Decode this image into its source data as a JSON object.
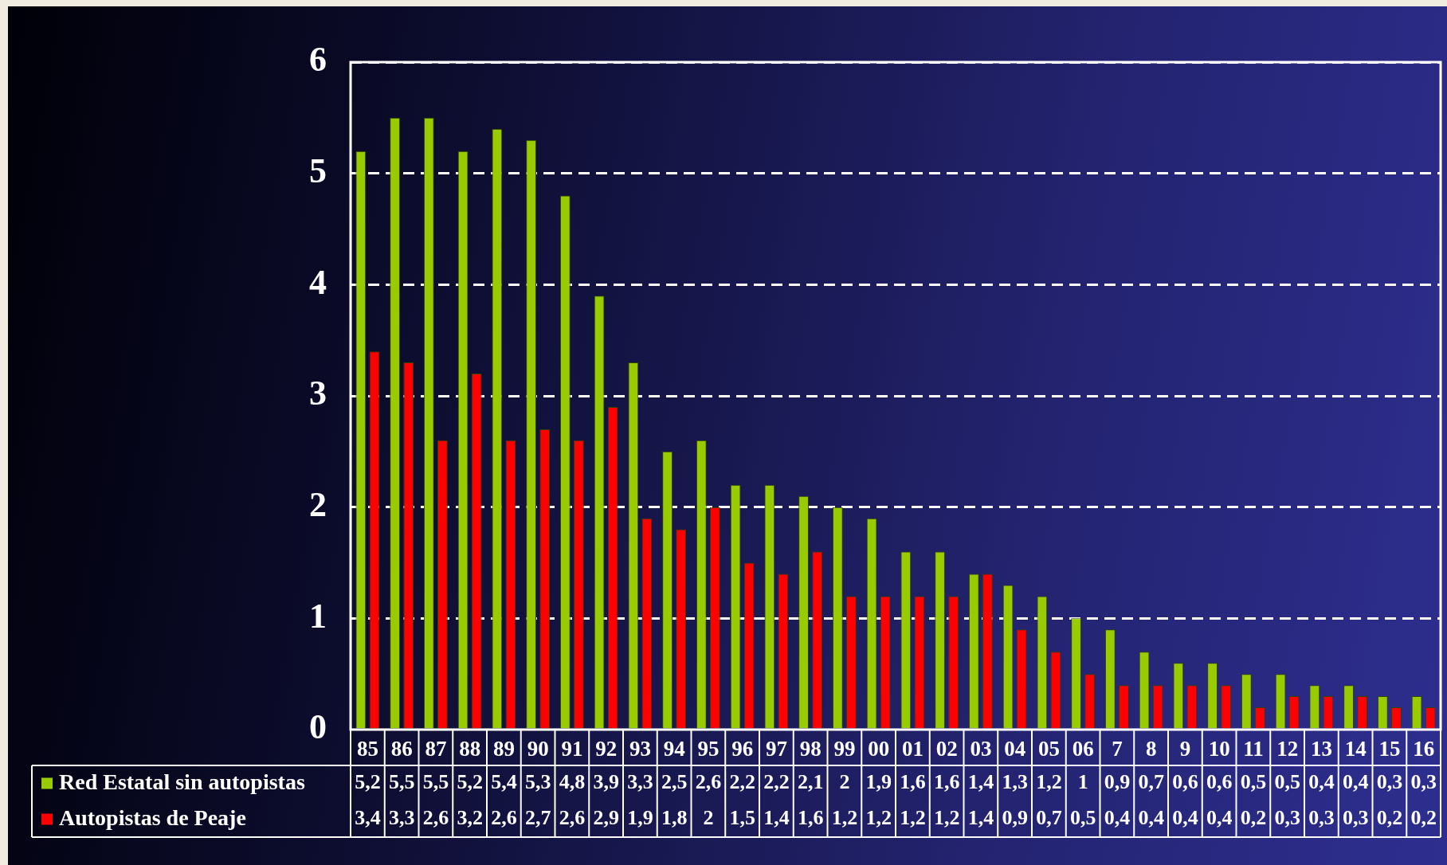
{
  "chart_data": {
    "type": "bar",
    "categories": [
      "85",
      "86",
      "87",
      "88",
      "89",
      "90",
      "91",
      "92",
      "93",
      "94",
      "95",
      "96",
      "97",
      "98",
      "99",
      "00",
      "01",
      "02",
      "03",
      "04",
      "05",
      "06",
      "7",
      "8",
      "9",
      "10",
      "11",
      "12",
      "13",
      "14",
      "15",
      "16"
    ],
    "series": [
      {
        "name": "Red Estatal sin autopistas",
        "color": "#99cc00",
        "values": [
          5.2,
          5.5,
          5.5,
          5.2,
          5.4,
          5.3,
          4.8,
          3.9,
          3.3,
          2.5,
          2.6,
          2.2,
          2.2,
          2.1,
          2,
          1.9,
          1.6,
          1.6,
          1.4,
          1.3,
          1.2,
          1,
          0.9,
          0.7,
          0.6,
          0.6,
          0.5,
          0.5,
          0.4,
          0.4,
          0.3,
          0.3
        ],
        "value_labels": [
          "5,2",
          "5,5",
          "5,5",
          "5,2",
          "5,4",
          "5,3",
          "4,8",
          "3,9",
          "3,3",
          "2,5",
          "2,6",
          "2,2",
          "2,2",
          "2,1",
          "2",
          "1,9",
          "1,6",
          "1,6",
          "1,4",
          "1,3",
          "1,2",
          "1",
          "0,9",
          "0,7",
          "0,6",
          "0,6",
          "0,5",
          "0,5",
          "0,4",
          "0,4",
          "0,3",
          "0,3"
        ]
      },
      {
        "name": "Autopistas de Peaje",
        "color": "#ff0000",
        "values": [
          3.4,
          3.3,
          2.6,
          3.2,
          2.6,
          2.7,
          2.6,
          2.9,
          1.9,
          1.8,
          2,
          1.5,
          1.4,
          1.6,
          1.2,
          1.2,
          1.2,
          1.2,
          1.4,
          0.9,
          0.7,
          0.5,
          0.4,
          0.4,
          0.4,
          0.4,
          0.2,
          0.3,
          0.3,
          0.3,
          0.2,
          0.2
        ],
        "value_labels": [
          "3,4",
          "3,3",
          "2,6",
          "3,2",
          "2,6",
          "2,7",
          "2,6",
          "2,9",
          "1,9",
          "1,8",
          "2",
          "1,5",
          "1,4",
          "1,6",
          "1,2",
          "1,2",
          "1,2",
          "1,2",
          "1,4",
          "0,9",
          "0,7",
          "0,5",
          "0,4",
          "0,4",
          "0,4",
          "0,4",
          "0,2",
          "0,3",
          "0,3",
          "0,3",
          "0,2",
          "0,2"
        ]
      }
    ],
    "ylim": [
      0,
      6
    ],
    "yticks": [
      0,
      1,
      2,
      3,
      4,
      5,
      6
    ],
    "grid": "y",
    "legend": "bottom left"
  }
}
